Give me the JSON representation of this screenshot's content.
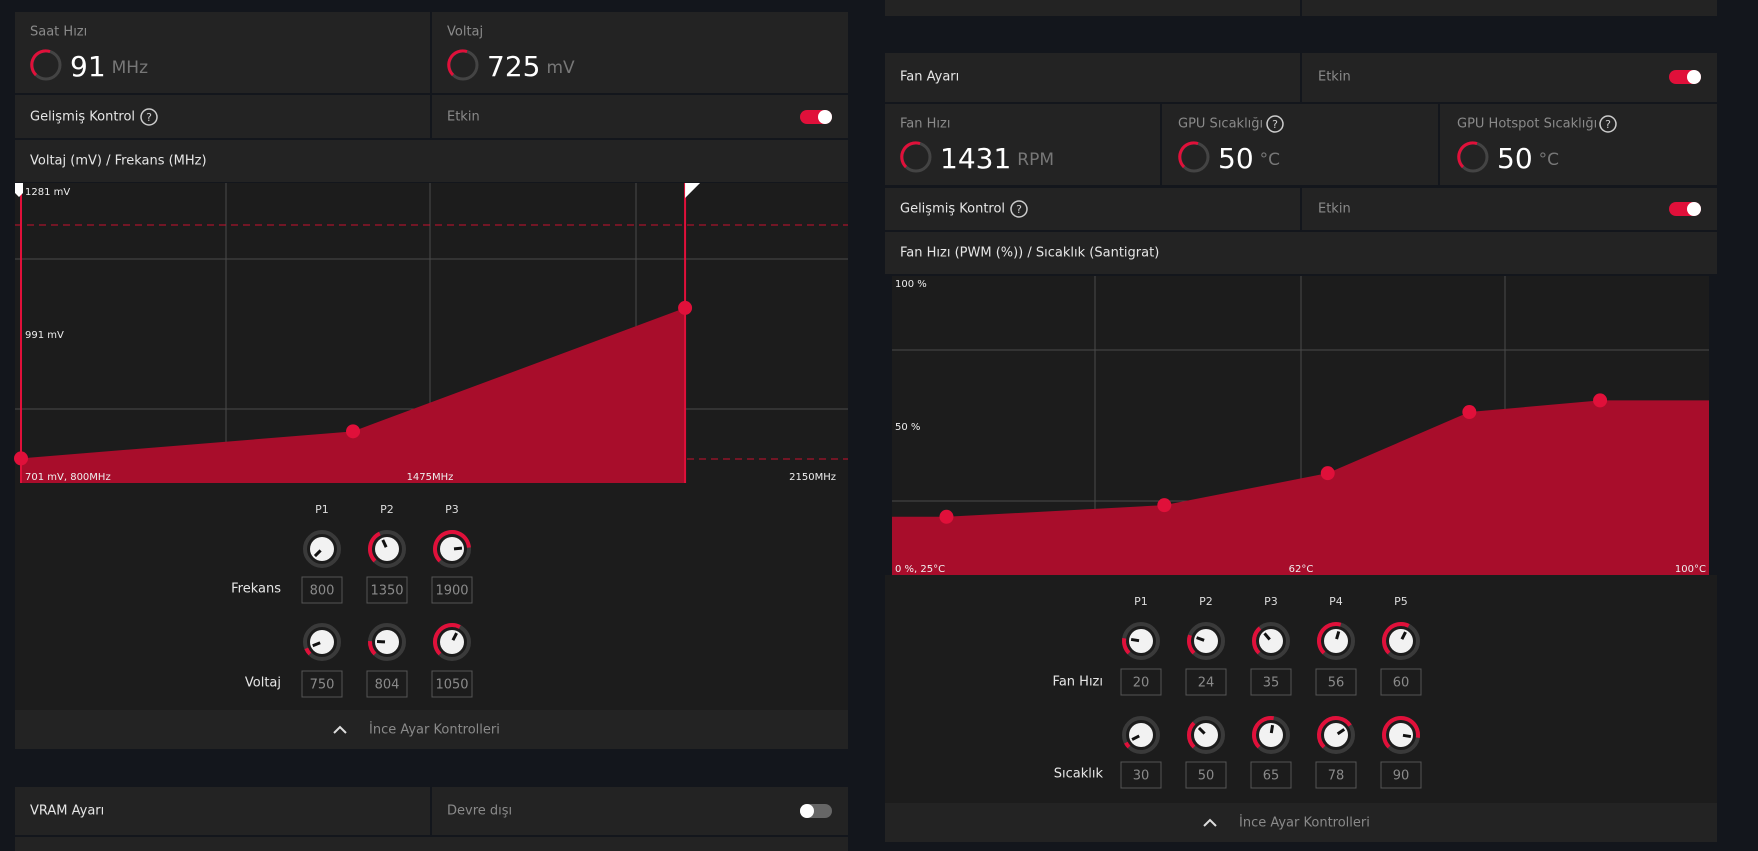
{
  "left": {
    "clock": {
      "label": "Saat Hızı",
      "value": 91,
      "unit": "MHz"
    },
    "voltage": {
      "label": "Voltaj",
      "value": 725,
      "unit": "mV"
    },
    "advanced": {
      "label": "Gelişmiş Kontrol",
      "state": "Etkin"
    },
    "curve": {
      "title": "Voltaj (mV) / Frekans (MHz)",
      "y_top": "1281 mV",
      "y_mid": "991 mV",
      "start": "701 mV, 800MHz",
      "x_mid": "1475MHz",
      "x_end": "2150MHz",
      "xlim": [
        800,
        2150
      ],
      "ylim": [
        701,
        1281
      ]
    },
    "points": [
      "P1",
      "P2",
      "P3"
    ],
    "frequency": {
      "label": "Frekans",
      "values": [
        800,
        1350,
        1900
      ]
    },
    "voltage_row": {
      "label": "Voltaj",
      "values": [
        750,
        804,
        1050
      ]
    },
    "tuning": "İnce Ayar Kontrolleri"
  },
  "vram": {
    "label": "VRAM Ayarı",
    "state": "Devre dışı"
  },
  "right": {
    "fan": {
      "label": "Fan Ayarı",
      "state": "Etkin"
    },
    "speed": {
      "label": "Fan Hızı",
      "value": 1431,
      "unit": "RPM"
    },
    "gpu_temp": {
      "label": "GPU Sıcaklığı",
      "value": 50,
      "unit": "°C"
    },
    "hotspot": {
      "label": "GPU Hotspot Sıcaklığı",
      "value": 50,
      "unit": "°C"
    },
    "advanced": {
      "label": "Gelişmiş Kontrol",
      "state": "Etkin"
    },
    "curve": {
      "title": "Fan Hızı (PWM (%)) / Sıcaklık (Santigrat)",
      "y_top": "100 %",
      "y_mid": "50 %",
      "start": "0 %, 25°C",
      "x_mid": "62°C",
      "x_end": "100°C",
      "xlim": [
        25,
        100
      ],
      "ylim": [
        0,
        100
      ]
    },
    "points": [
      "P1",
      "P2",
      "P3",
      "P4",
      "P5"
    ],
    "fan_speed": {
      "label": "Fan Hızı",
      "values": [
        20,
        24,
        35,
        56,
        60
      ]
    },
    "temperature": {
      "label": "Sıcaklık",
      "values": [
        30,
        50,
        65,
        78,
        90
      ]
    },
    "tuning": "İnce Ayar Kontrolleri"
  }
}
